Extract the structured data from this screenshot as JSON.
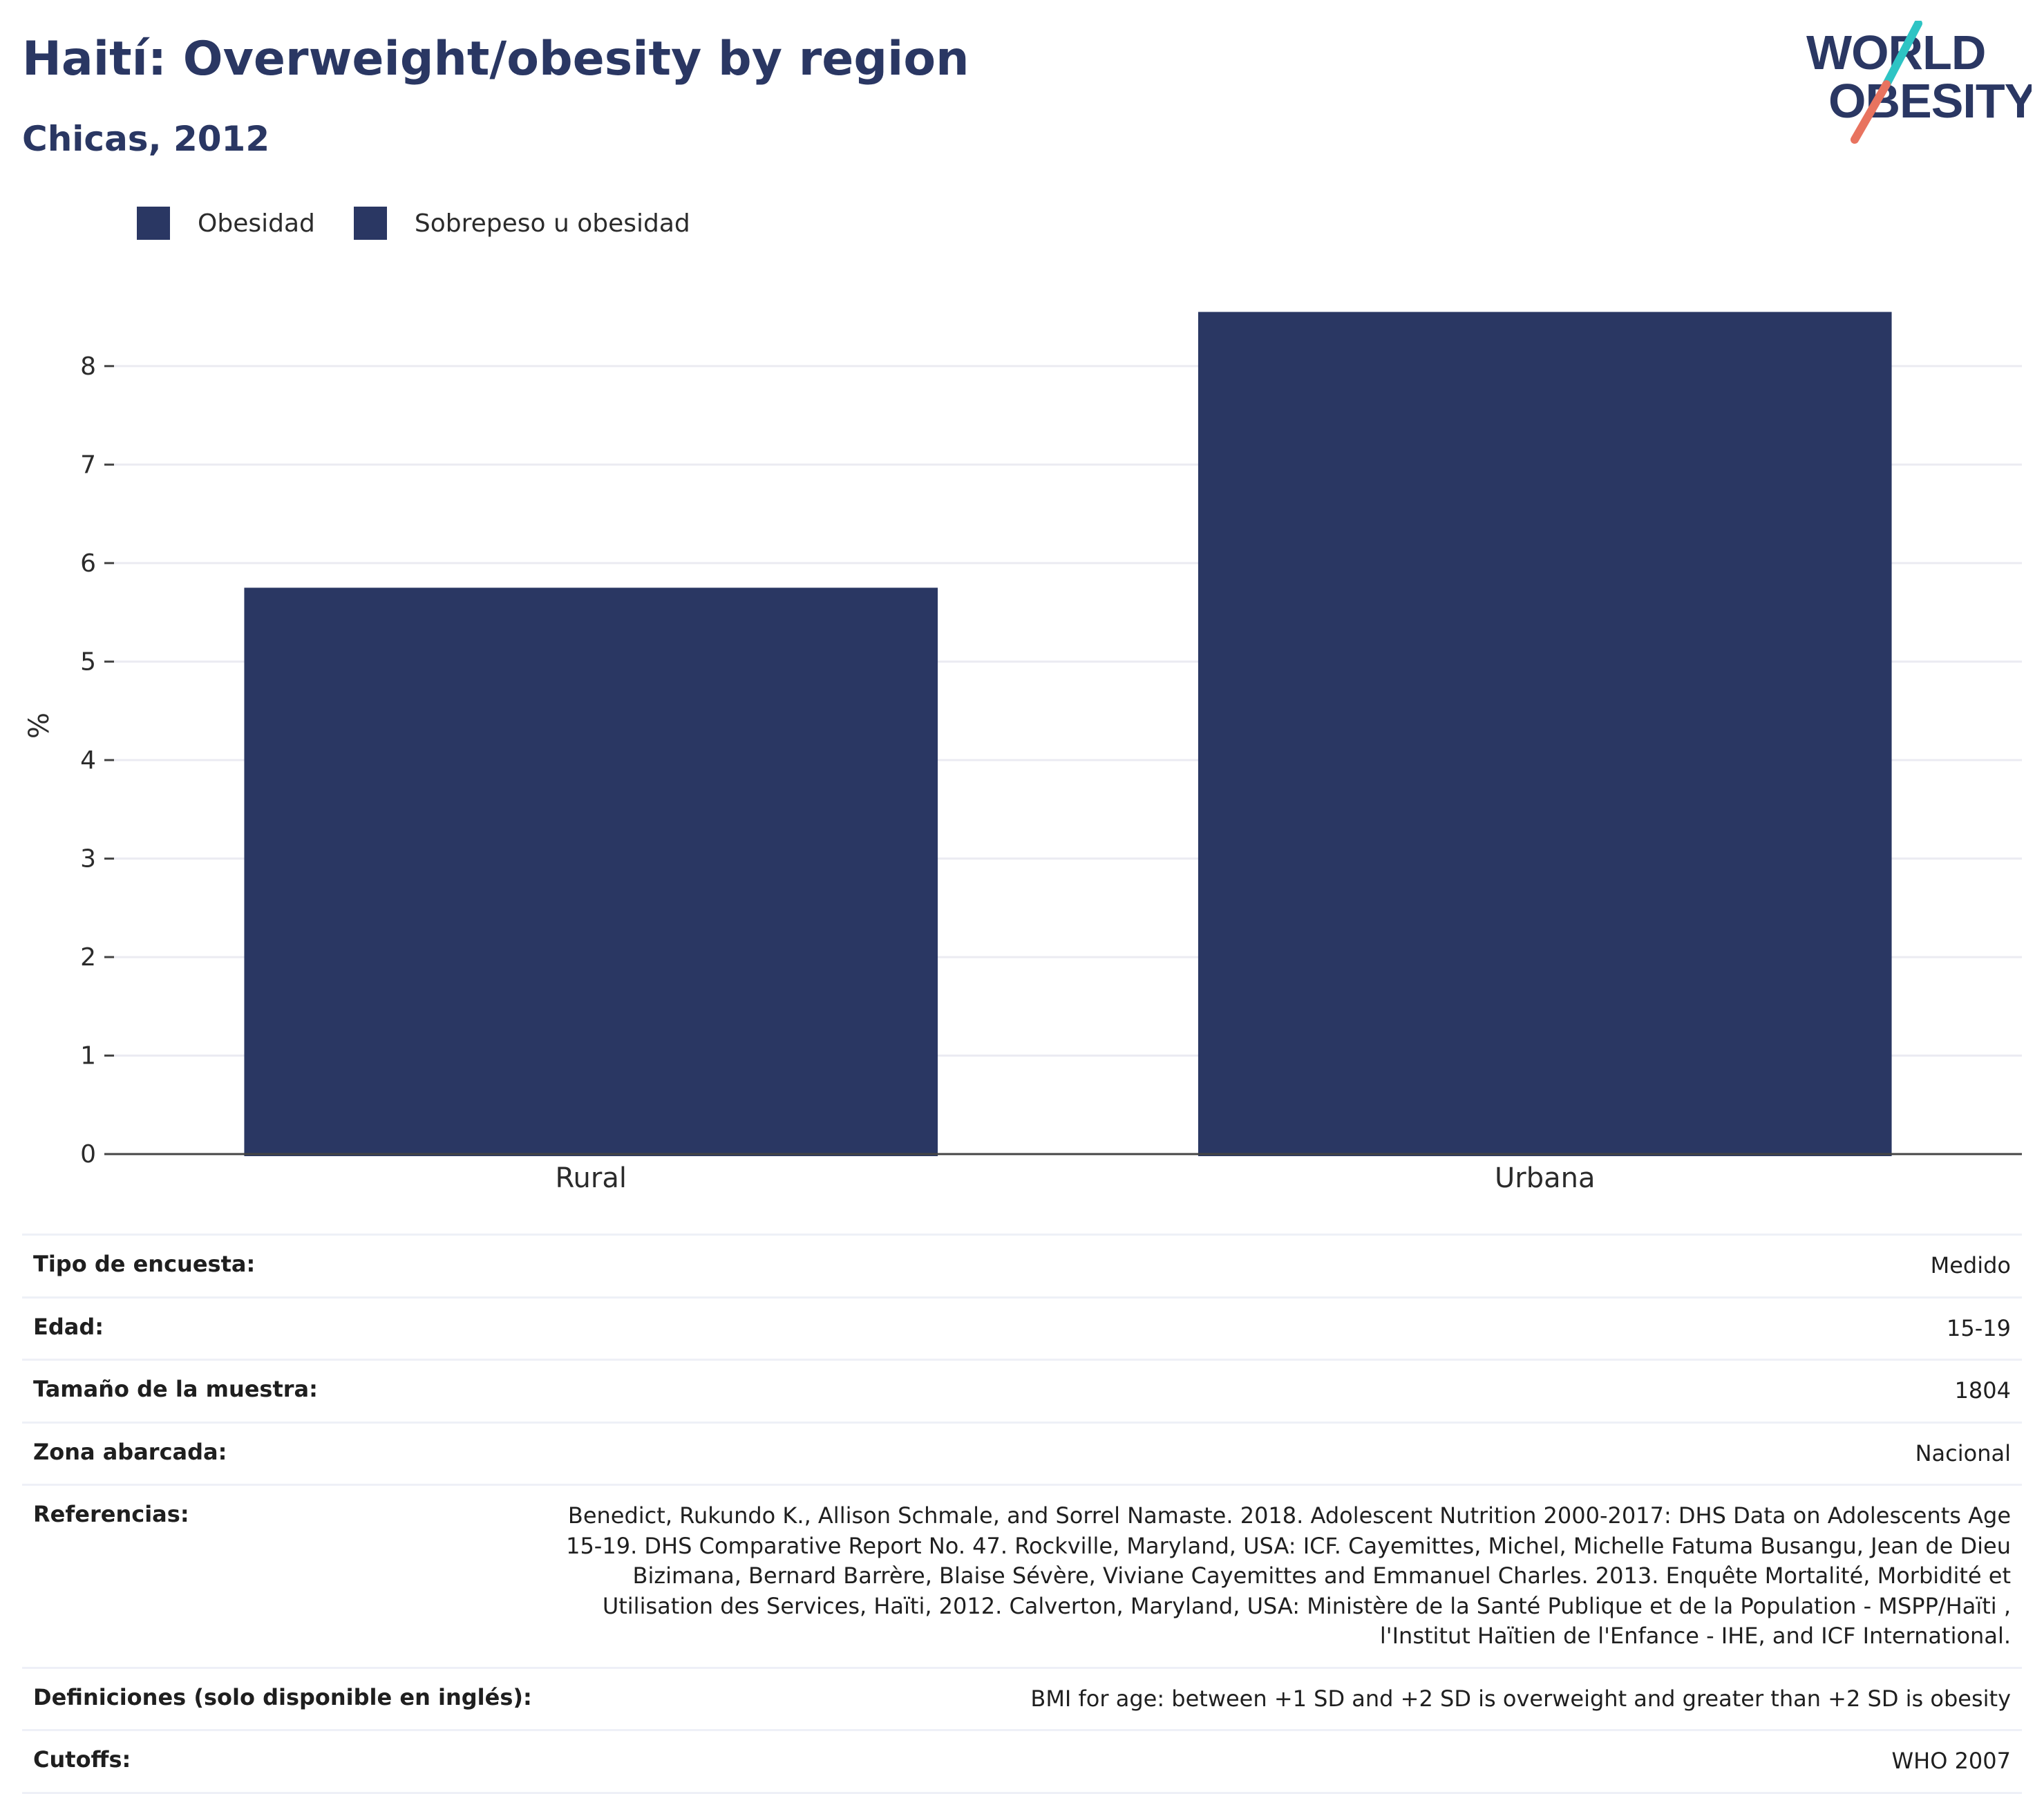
{
  "header": {
    "title": "Haití: Overweight/obesity by region",
    "subtitle": "Chicas, 2012"
  },
  "logo": {
    "line1": "WORLD",
    "line2": "OBESITY",
    "colors": {
      "text": "#2a3763",
      "teal": "#2ec4c4",
      "coral": "#e8735f"
    }
  },
  "colors": {
    "bar": "#2a3763",
    "grid": "#ebebf2",
    "axis": "#444444",
    "text": "#2a3763"
  },
  "legend": {
    "items": [
      {
        "label": "Obesidad",
        "color": "#2a3763"
      },
      {
        "label": "Sobrepeso u obesidad",
        "color": "#2a3763"
      }
    ]
  },
  "chart_data": {
    "type": "bar",
    "categories": [
      "Rural",
      "Urbana"
    ],
    "series": [
      {
        "name": "Obesidad",
        "values": [
          5.75,
          8.55
        ]
      }
    ],
    "xlabel": "",
    "ylabel": "%",
    "ylim": [
      0,
      8.7
    ],
    "yticks": [
      0,
      1,
      2,
      3,
      4,
      5,
      6,
      7,
      8
    ],
    "grid": true,
    "legend_position": "top-left"
  },
  "meta": {
    "rows": [
      {
        "label": "Tipo de encuesta:",
        "value": "Medido"
      },
      {
        "label": "Edad:",
        "value": "15-19"
      },
      {
        "label": "Tamaño de la muestra:",
        "value": "1804"
      },
      {
        "label": "Zona abarcada:",
        "value": "Nacional"
      },
      {
        "label": "Referencias:",
        "value": "Benedict, Rukundo K., Allison Schmale, and Sorrel Namaste. 2018. Adolescent Nutrition 2000-2017: DHS Data on Adolescents Age 15-19. DHS Comparative Report No. 47. Rockville, Maryland, USA: ICF. Cayemittes, Michel, Michelle Fatuma Busangu, Jean de Dieu Bizimana, Bernard Barrère, Blaise Sévère, Viviane Cayemittes and Emmanuel Charles. 2013. Enquête Mortalité, Morbidité et Utilisation des Services, Haïti, 2012. Calverton, Maryland, USA: Ministère de la Santé Publique et de la Population - MSPP/Haïti , l'Institut Haïtien de l'Enfance - IHE, and ICF International."
      },
      {
        "label": "Definiciones (solo disponible en inglés):",
        "value": "BMI for age: between +1 SD and +2 SD is overweight and greater than +2 SD is obesity"
      },
      {
        "label": "Cutoffs:",
        "value": "WHO 2007"
      }
    ]
  }
}
